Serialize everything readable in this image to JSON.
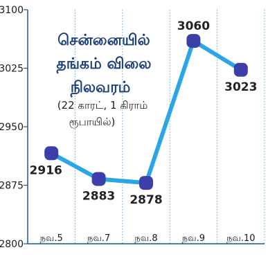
{
  "chart_data": {
    "type": "line",
    "categories": [
      "நவ.5",
      "நவ.7",
      "நவ.8",
      "நவ.9",
      "நவ.10"
    ],
    "values": [
      2916,
      2883,
      2878,
      3060,
      3023
    ],
    "value_labels": [
      "2916",
      "2883",
      "2878",
      "3060",
      "3023"
    ],
    "ylim": [
      2800,
      3100
    ],
    "yticks": [
      2800,
      2875,
      2950,
      3025,
      3100
    ],
    "ytick_labels": [
      "2800",
      "2875",
      "2950",
      "3025",
      "3100"
    ],
    "grid": "vertical",
    "title_lines": [
      "சென்னையில்",
      "தங்கம் விலை",
      "நிலவரம்"
    ],
    "subtitle_lines": [
      "(22 காரட், 1 கிராம்",
      "ரூபாயில்)"
    ],
    "colors": {
      "line": "#2aa6e6",
      "marker": "#3c3fa8",
      "title": "#1c3f7d",
      "grid": "#5aa9df",
      "axis": "#1f4f8f"
    }
  }
}
